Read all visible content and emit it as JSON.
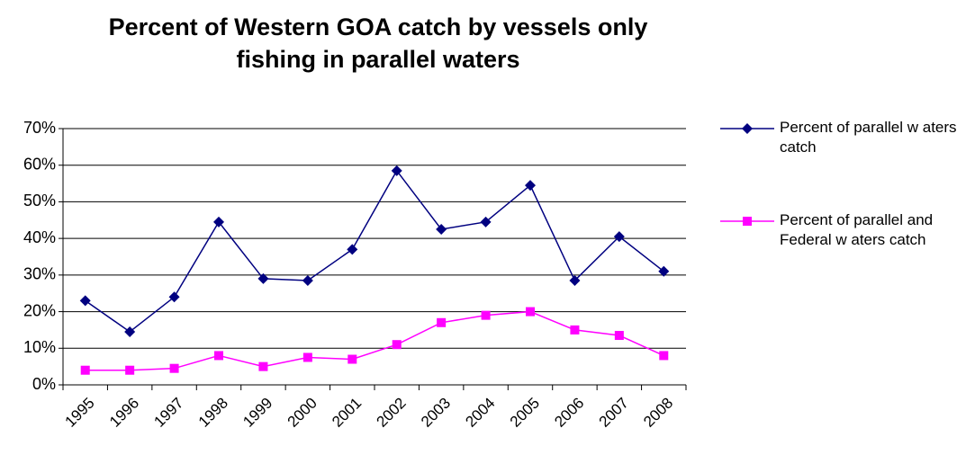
{
  "chart_data": {
    "type": "line",
    "title": "Percent of Western GOA catch by vessels only fishing in parallel waters",
    "categories": [
      "1995",
      "1996",
      "1997",
      "1998",
      "1999",
      "2000",
      "2001",
      "2002",
      "2003",
      "2004",
      "2005",
      "2006",
      "2007",
      "2008"
    ],
    "series": [
      {
        "name": "Percent of parallel w aters catch",
        "color": "#000080",
        "marker": "diamond",
        "values": [
          23,
          14.5,
          24,
          44.5,
          29,
          28.5,
          37,
          58.5,
          42.5,
          44.5,
          54.5,
          28.5,
          40.5,
          31
        ]
      },
      {
        "name": "Percent of parallel and Federal w aters catch",
        "color": "#ff00ff",
        "marker": "square",
        "values": [
          4,
          4,
          4.5,
          8,
          5,
          7.5,
          7,
          11,
          17,
          19,
          20,
          15,
          13.5,
          8
        ]
      }
    ],
    "ylim": [
      0,
      70
    ],
    "yticks": [
      {
        "value": 0,
        "label": "0%"
      },
      {
        "value": 10,
        "label": "10%"
      },
      {
        "value": 20,
        "label": "20%"
      },
      {
        "value": 30,
        "label": "30%"
      },
      {
        "value": 40,
        "label": "40%"
      },
      {
        "value": 50,
        "label": "50%"
      },
      {
        "value": 60,
        "label": "60%"
      },
      {
        "value": 70,
        "label": "70%"
      }
    ],
    "grid": true,
    "legend": "right"
  }
}
